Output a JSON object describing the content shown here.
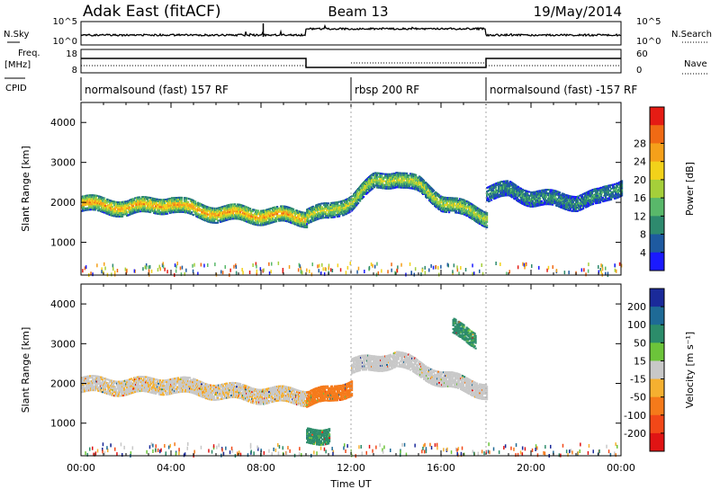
{
  "header": {
    "station": "Adak East (fitACF)",
    "beam": "Beam 13",
    "date": "19/May/2014"
  },
  "sky_panel": {
    "left_label": "N.Sky",
    "right_label": "N.Search",
    "ticks_left": [
      "10^5",
      "10^0"
    ],
    "ticks_right": [
      "10^5",
      "10^0"
    ]
  },
  "freq_panel": {
    "left_label_1": "Freq.",
    "left_label_2": "[MHz]",
    "right_label": "Nave",
    "ticks_left": [
      "18",
      "8"
    ],
    "ticks_right": [
      "60",
      "0"
    ]
  },
  "cpid": {
    "label": "CPID",
    "segments": [
      {
        "text": "normalsound (fast) 157 RF",
        "start_hour": 0,
        "end_hour": 12
      },
      {
        "text": "rbsp 200 RF",
        "start_hour": 12,
        "end_hour": 18
      },
      {
        "text": "normalsound (fast) -157 RF",
        "start_hour": 18,
        "end_hour": 24
      }
    ]
  },
  "x_axis": {
    "title": "Time UT",
    "ticks": [
      "00:00",
      "04:00",
      "08:00",
      "12:00",
      "16:00",
      "20:00",
      "00:00"
    ]
  },
  "power_panel": {
    "ylabel": "Slant Range [km]",
    "yticks": [
      "1000",
      "2000",
      "3000",
      "4000"
    ],
    "colorbar_title": "Power [dB]",
    "colorbar_ticks": [
      "4",
      "8",
      "12",
      "16",
      "20",
      "24",
      "28"
    ],
    "colors": [
      "#1a1aff",
      "#1e5aa0",
      "#2e8a6e",
      "#59b86a",
      "#a5cf3a",
      "#f2d21a",
      "#f5a01a",
      "#f06a14",
      "#e51c14"
    ]
  },
  "velocity_panel": {
    "ylabel": "Slant Range [km]",
    "yticks": [
      "1000",
      "2000",
      "3000",
      "4000"
    ],
    "colorbar_title": "Velocity [m s⁻¹]",
    "colorbar_ticks": [
      "200",
      "100",
      "50",
      "15",
      "-15",
      "-50",
      "-100",
      "-200"
    ],
    "colors": [
      "#1a2a9a",
      "#1e6a96",
      "#2c8c6a",
      "#6cc43a",
      "#c8c8c8",
      "#f5b030",
      "#f57a1a",
      "#f24818",
      "#e01414"
    ]
  },
  "chart_data": {
    "type": "heatmap",
    "x_range_hours": [
      0,
      24
    ],
    "y_range_km": [
      180,
      4500
    ],
    "power_bands": [
      {
        "t": [
          0,
          1,
          2,
          3,
          4,
          5,
          6,
          7,
          8,
          9,
          10
        ],
        "range_km": [
          1950,
          1900,
          1850,
          1900,
          1950,
          1800,
          1700,
          1700,
          1650,
          1650,
          1600
        ],
        "power_db": 22
      },
      {
        "t": [
          10,
          11,
          12,
          13,
          14,
          15,
          16,
          17,
          18
        ],
        "range_km": [
          1650,
          1750,
          2000,
          2500,
          2600,
          2400,
          2000,
          1800,
          1600
        ],
        "power_db": 16
      },
      {
        "t": [
          18,
          19,
          20,
          21,
          22,
          23,
          24
        ],
        "range_km": [
          2200,
          2300,
          2100,
          2050,
          2000,
          2100,
          2400
        ],
        "power_db": 8
      }
    ],
    "velocity_bands": [
      {
        "t": [
          0,
          2,
          4,
          6,
          8,
          10
        ],
        "range_km": [
          1950,
          1900,
          1950,
          1800,
          1700,
          1650
        ],
        "velocity_ms": -10
      },
      {
        "t": [
          10,
          11,
          12
        ],
        "range_km": [
          1600,
          1700,
          1900
        ],
        "velocity_ms": -60
      },
      {
        "t": [
          12,
          14,
          16,
          18
        ],
        "range_km": [
          2400,
          2600,
          2100,
          1800
        ],
        "velocity_ms": 5
      },
      {
        "t": [
          16.5,
          17,
          17.5
        ],
        "range_km": [
          3400,
          3300,
          3100
        ],
        "velocity_ms": 40
      },
      {
        "t": [
          10,
          11
        ],
        "range_km": [
          650,
          700
        ],
        "velocity_ms": 40
      }
    ]
  }
}
